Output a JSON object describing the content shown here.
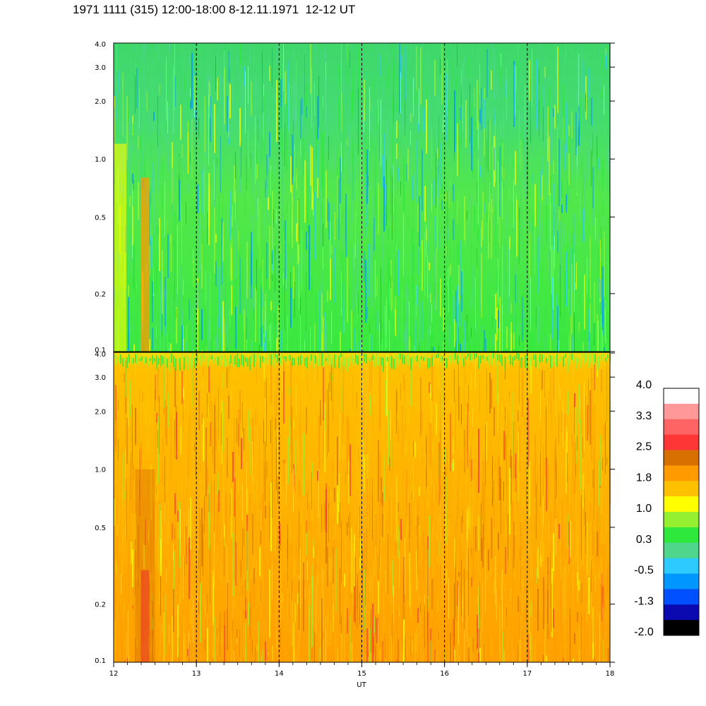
{
  "title": "1971 1111 (315) 12:00-18:00 8-12.11.1971  12-12 UT",
  "chart_data": [
    {
      "type": "heatmap",
      "panel": "upper",
      "x_range": [
        12,
        18
      ],
      "y_range": [
        0.1,
        4.0
      ],
      "y_scale": "log",
      "y_ticks": [
        "0.1",
        "0.2",
        "0.5",
        "1.0",
        "2.0",
        "3.0",
        "4.0"
      ],
      "x_ticks": [
        "12",
        "13",
        "14",
        "15",
        "16",
        "17",
        "18"
      ],
      "hour_gridlines": [
        13,
        14,
        15,
        16,
        17
      ],
      "grid": "dashed vertical at each hour",
      "dominant_levels": [
        "0.3",
        "-0.5",
        "1.0"
      ]
    },
    {
      "type": "heatmap",
      "panel": "lower",
      "x_range": [
        12,
        18
      ],
      "y_range": [
        0.1,
        4.0
      ],
      "y_scale": "log",
      "y_ticks": [
        "0.1",
        "0.2",
        "0.5",
        "1.0",
        "2.0",
        "3.0",
        "4.0"
      ],
      "x_ticks": [
        "12",
        "13",
        "14",
        "15",
        "16",
        "17",
        "18"
      ],
      "xlabel": "UT",
      "hour_gridlines": [
        13,
        14,
        15,
        16,
        17
      ],
      "grid": "dashed vertical at each hour",
      "dominant_levels": [
        "1.8",
        "1.0",
        "2.5"
      ]
    }
  ],
  "colorbar": {
    "placement": "right",
    "colors": [
      "#000000",
      "#0a0ab0",
      "#0050ff",
      "#0096ff",
      "#2ccaff",
      "#4fd68c",
      "#2ee83c",
      "#96f032",
      "#ffff00",
      "#ffc000",
      "#ff9a00",
      "#d87000",
      "#ff3636",
      "#ff6464",
      "#ff9898",
      "#ffffff"
    ],
    "labels": [
      "4.0",
      "3.3",
      "2.5",
      "1.8",
      "1.0",
      "0.3",
      "-0.5",
      "-1.3",
      "-2.0"
    ]
  }
}
